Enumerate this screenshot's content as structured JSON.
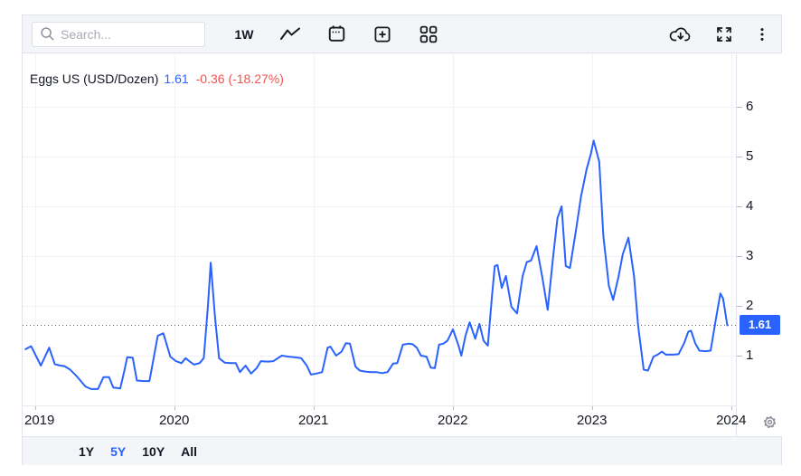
{
  "toolbar": {
    "search_placeholder": "Search...",
    "interval_label": "1W",
    "icon_names": [
      "search-icon",
      "line-chart-icon",
      "calendar-icon",
      "add-square-icon",
      "grid-icon",
      "cloud-download-icon",
      "fullscreen-icon",
      "more-vertical-icon"
    ]
  },
  "legend": {
    "symbol": "Eggs US (USD/Dozen)",
    "price": "1.61",
    "change": "-0.36 (-18.27%)"
  },
  "price_scale": {
    "ticks": [
      6,
      5,
      4,
      3,
      2,
      1
    ],
    "current_price_label": "1.61"
  },
  "x_axis": {
    "labels": [
      "2019",
      "2020",
      "2021",
      "2022",
      "2023",
      "2024"
    ]
  },
  "range_buttons": [
    {
      "label": "1Y",
      "active": false
    },
    {
      "label": "5Y",
      "active": true
    },
    {
      "label": "10Y",
      "active": false
    },
    {
      "label": "All",
      "active": false
    }
  ],
  "colors": {
    "accent_blue": "#2962ff",
    "down_red": "#f05350",
    "grid": "#f0f2f5",
    "border": "#e0e3eb",
    "text_dark": "#131722",
    "toolbar_bg": "#f4f5f8"
  },
  "chart_data": {
    "type": "line",
    "title": "Eggs US (USD/Dozen)",
    "x_unit": "decimal_year",
    "x_min": 2018.909,
    "x_max": 2024.032,
    "y_min": 0,
    "y_max": 7.073,
    "x_gridlines": [
      2019,
      2020,
      2021,
      2022,
      2023,
      2024
    ],
    "y_gridlines": [
      1,
      2,
      3,
      4,
      5,
      6
    ],
    "grid": true,
    "current_value": 1.61,
    "dotted_line_value": 1.61,
    "series": [
      {
        "name": "Eggs US (USD/Dozen)",
        "points": [
          [
            2018.93,
            1.13
          ],
          [
            2018.97,
            1.19
          ],
          [
            2019.04,
            0.8
          ],
          [
            2019.1,
            1.16
          ],
          [
            2019.14,
            0.83
          ],
          [
            2019.18,
            0.8
          ],
          [
            2019.21,
            0.79
          ],
          [
            2019.25,
            0.72
          ],
          [
            2019.3,
            0.58
          ],
          [
            2019.36,
            0.38
          ],
          [
            2019.4,
            0.33
          ],
          [
            2019.45,
            0.33
          ],
          [
            2019.49,
            0.57
          ],
          [
            2019.53,
            0.57
          ],
          [
            2019.56,
            0.36
          ],
          [
            2019.61,
            0.34
          ],
          [
            2019.64,
            0.7
          ],
          [
            2019.66,
            0.97
          ],
          [
            2019.7,
            0.96
          ],
          [
            2019.73,
            0.5
          ],
          [
            2019.78,
            0.49
          ],
          [
            2019.82,
            0.49
          ],
          [
            2019.88,
            1.4
          ],
          [
            2019.92,
            1.45
          ],
          [
            2019.97,
            0.98
          ],
          [
            2020.01,
            0.89
          ],
          [
            2020.05,
            0.85
          ],
          [
            2020.08,
            0.95
          ],
          [
            2020.11,
            0.88
          ],
          [
            2020.14,
            0.82
          ],
          [
            2020.18,
            0.85
          ],
          [
            2020.21,
            0.95
          ],
          [
            2020.24,
            2.0
          ],
          [
            2020.26,
            2.87
          ],
          [
            2020.29,
            1.8
          ],
          [
            2020.32,
            0.95
          ],
          [
            2020.36,
            0.86
          ],
          [
            2020.4,
            0.85
          ],
          [
            2020.44,
            0.85
          ],
          [
            2020.47,
            0.67
          ],
          [
            2020.51,
            0.8
          ],
          [
            2020.55,
            0.64
          ],
          [
            2020.59,
            0.75
          ],
          [
            2020.62,
            0.89
          ],
          [
            2020.67,
            0.88
          ],
          [
            2020.71,
            0.89
          ],
          [
            2020.77,
            1.0
          ],
          [
            2020.82,
            0.98
          ],
          [
            2020.86,
            0.97
          ],
          [
            2020.91,
            0.95
          ],
          [
            2020.95,
            0.8
          ],
          [
            2020.98,
            0.62
          ],
          [
            2021.02,
            0.64
          ],
          [
            2021.06,
            0.67
          ],
          [
            2021.1,
            1.16
          ],
          [
            2021.12,
            1.18
          ],
          [
            2021.16,
            1.0
          ],
          [
            2021.2,
            1.08
          ],
          [
            2021.23,
            1.25
          ],
          [
            2021.26,
            1.24
          ],
          [
            2021.3,
            0.78
          ],
          [
            2021.33,
            0.7
          ],
          [
            2021.37,
            0.68
          ],
          [
            2021.41,
            0.67
          ],
          [
            2021.45,
            0.67
          ],
          [
            2021.49,
            0.65
          ],
          [
            2021.53,
            0.67
          ],
          [
            2021.57,
            0.84
          ],
          [
            2021.6,
            0.85
          ],
          [
            2021.64,
            1.22
          ],
          [
            2021.68,
            1.24
          ],
          [
            2021.71,
            1.23
          ],
          [
            2021.74,
            1.16
          ],
          [
            2021.77,
            1.0
          ],
          [
            2021.81,
            0.98
          ],
          [
            2021.84,
            0.76
          ],
          [
            2021.87,
            0.75
          ],
          [
            2021.9,
            1.22
          ],
          [
            2021.93,
            1.24
          ],
          [
            2021.96,
            1.3
          ],
          [
            2022.0,
            1.53
          ],
          [
            2022.04,
            1.2
          ],
          [
            2022.06,
            1.0
          ],
          [
            2022.09,
            1.4
          ],
          [
            2022.12,
            1.67
          ],
          [
            2022.16,
            1.34
          ],
          [
            2022.19,
            1.64
          ],
          [
            2022.22,
            1.3
          ],
          [
            2022.25,
            1.2
          ],
          [
            2022.28,
            2.2
          ],
          [
            2022.3,
            2.8
          ],
          [
            2022.32,
            2.82
          ],
          [
            2022.35,
            2.36
          ],
          [
            2022.38,
            2.6
          ],
          [
            2022.42,
            1.98
          ],
          [
            2022.46,
            1.85
          ],
          [
            2022.5,
            2.6
          ],
          [
            2022.53,
            2.88
          ],
          [
            2022.56,
            2.91
          ],
          [
            2022.6,
            3.2
          ],
          [
            2022.64,
            2.6
          ],
          [
            2022.68,
            1.92
          ],
          [
            2022.72,
            3.0
          ],
          [
            2022.75,
            3.76
          ],
          [
            2022.78,
            4.0
          ],
          [
            2022.81,
            2.8
          ],
          [
            2022.84,
            2.76
          ],
          [
            2022.88,
            3.46
          ],
          [
            2022.92,
            4.2
          ],
          [
            2022.96,
            4.75
          ],
          [
            2022.99,
            5.05
          ],
          [
            2023.01,
            5.32
          ],
          [
            2023.05,
            4.9
          ],
          [
            2023.08,
            3.4
          ],
          [
            2023.12,
            2.4
          ],
          [
            2023.15,
            2.12
          ],
          [
            2023.19,
            2.6
          ],
          [
            2023.22,
            3.04
          ],
          [
            2023.26,
            3.37
          ],
          [
            2023.3,
            2.6
          ],
          [
            2023.33,
            1.59
          ],
          [
            2023.37,
            0.72
          ],
          [
            2023.4,
            0.7
          ],
          [
            2023.44,
            0.98
          ],
          [
            2023.47,
            1.02
          ],
          [
            2023.5,
            1.08
          ],
          [
            2023.53,
            1.02
          ],
          [
            2023.58,
            1.02
          ],
          [
            2023.62,
            1.03
          ],
          [
            2023.66,
            1.25
          ],
          [
            2023.69,
            1.48
          ],
          [
            2023.71,
            1.5
          ],
          [
            2023.74,
            1.25
          ],
          [
            2023.77,
            1.1
          ],
          [
            2023.81,
            1.09
          ],
          [
            2023.85,
            1.1
          ],
          [
            2023.89,
            1.76
          ],
          [
            2023.92,
            2.25
          ],
          [
            2023.94,
            2.15
          ],
          [
            2023.97,
            1.61
          ]
        ]
      }
    ]
  }
}
